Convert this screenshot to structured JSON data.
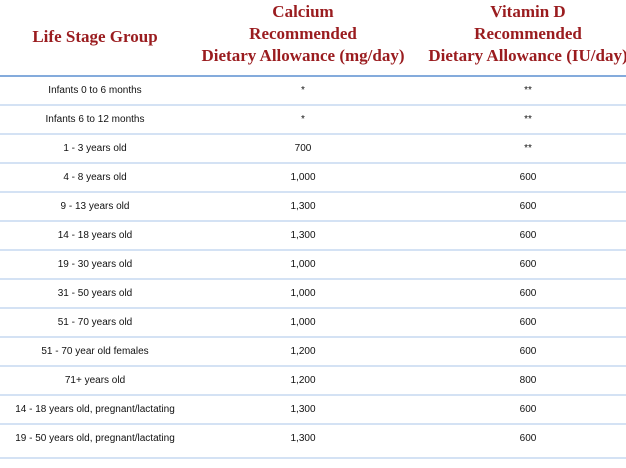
{
  "table": {
    "columns": [
      [
        "Life Stage Group"
      ],
      [
        "Calcium",
        "Recommended",
        "Dietary Allowance (mg/day)"
      ],
      [
        "Vitamin D",
        "Recommended",
        "Dietary Allowance (IU/day)"
      ]
    ],
    "rows": [
      [
        "Infants 0 to 6 months",
        "*",
        "**"
      ],
      [
        "Infants 6 to 12 months",
        "*",
        "**"
      ],
      [
        "1 - 3 years old",
        "700",
        "**"
      ],
      [
        "4 - 8 years old",
        "1,000",
        "600"
      ],
      [
        "9 - 13 years old",
        "1,300",
        "600"
      ],
      [
        "14 - 18 years old",
        "1,300",
        "600"
      ],
      [
        "19 - 30 years old",
        "1,000",
        "600"
      ],
      [
        "31 - 50 years old",
        "1,000",
        "600"
      ],
      [
        "51 - 70 years old",
        "1,000",
        "600"
      ],
      [
        "51 - 70 year old females",
        "1,200",
        "600"
      ],
      [
        "71+ years old",
        "1,200",
        "800"
      ],
      [
        "14 - 18 years old, pregnant/lactating",
        "1,300",
        "600"
      ],
      [
        "19 - 50 years old, pregnant/lactating",
        "1,300",
        "600"
      ]
    ]
  }
}
